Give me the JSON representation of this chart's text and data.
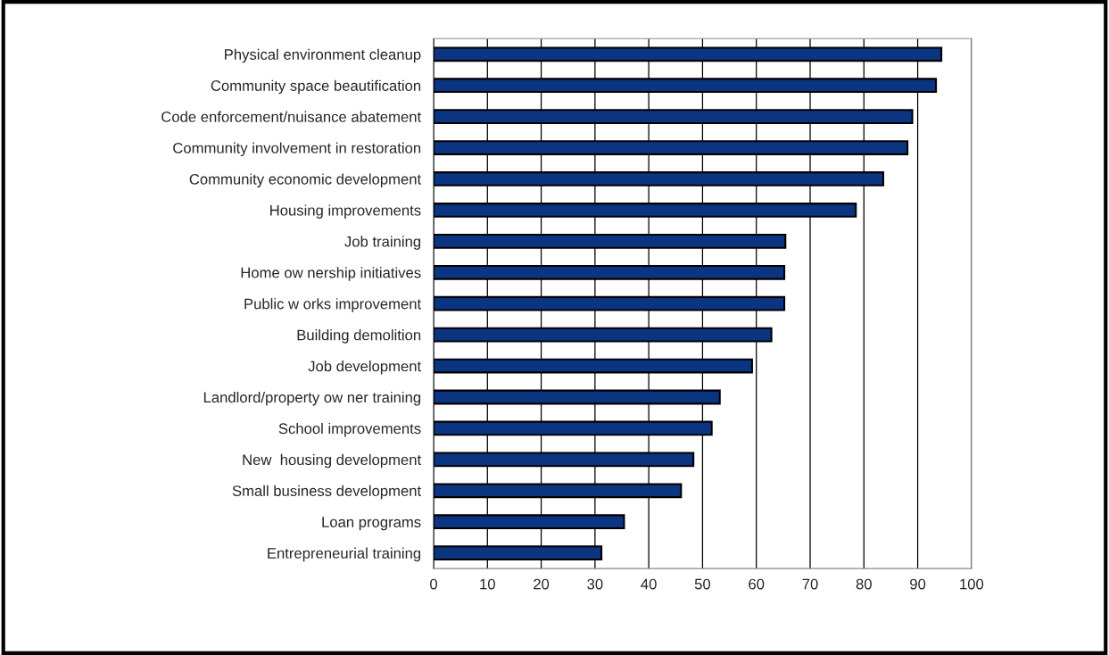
{
  "chart_data": {
    "type": "bar",
    "orientation": "horizontal",
    "categories": [
      "Physical environment cleanup",
      "Community space beautification",
      "Code enforcement/nuisance abatement",
      "Community involvement in restoration",
      "Community economic development",
      "Housing improvements",
      "Job training",
      "Home ow nership initiatives",
      "Public w orks improvement",
      "Building demolition",
      "Job development",
      "Landlord/property ow ner training",
      "School improvements",
      "New  housing development",
      "Small business development",
      "Loan programs",
      "Entrepreneurial training"
    ],
    "values": [
      94.4,
      93.4,
      89.0,
      88.1,
      83.6,
      78.5,
      65.4,
      65.2,
      65.2,
      62.8,
      59.2,
      53.2,
      51.7,
      48.3,
      46.0,
      35.4,
      31.2
    ],
    "color": "#0b3580",
    "xlim": [
      0,
      100
    ],
    "xticks": [
      0,
      10,
      20,
      30,
      40,
      50,
      60,
      70,
      80,
      90,
      100
    ],
    "grid": "x",
    "legend": false
  }
}
